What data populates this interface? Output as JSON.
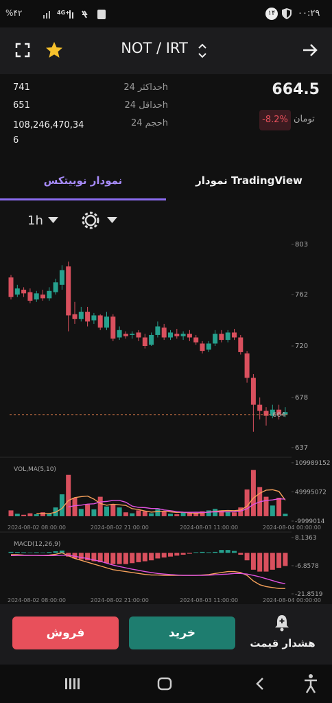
{
  "status_bar": {
    "battery": "%۴۲",
    "network": "4G+",
    "badge": "۱۴",
    "time": "۰۰:۲۹"
  },
  "header": {
    "pair": "NOT / IRT"
  },
  "stats": {
    "rows": [
      {
        "label": "حداکثر 24h",
        "value": "741"
      },
      {
        "label": "حداقل 24h",
        "value": "651"
      },
      {
        "label": "حجم 24h",
        "value": "108,246,470,346"
      }
    ],
    "price": "664.5",
    "currency": "تومان",
    "change": "-8.2%"
  },
  "tabs": {
    "active": "نمودار نوبیتکس",
    "other": "نمودار TradingView"
  },
  "interval": "1h",
  "chart_data": [
    {
      "type": "candlestick",
      "x": [
        "2024-08-02 08:00:00",
        "2024-08-02 09:00:00",
        "2024-08-02 10:00:00",
        "2024-08-02 11:00:00",
        "2024-08-02 12:00:00",
        "2024-08-02 13:00:00",
        "2024-08-02 14:00:00",
        "2024-08-02 15:00:00",
        "2024-08-02 16:00:00",
        "2024-08-02 17:00:00",
        "2024-08-02 18:00:00",
        "2024-08-02 19:00:00",
        "2024-08-02 20:00:00",
        "2024-08-02 21:00:00",
        "2024-08-02 22:00:00",
        "2024-08-02 23:00:00",
        "2024-08-03 00:00:00",
        "2024-08-03 01:00:00",
        "2024-08-03 02:00:00",
        "2024-08-03 03:00:00",
        "2024-08-03 04:00:00",
        "2024-08-03 05:00:00",
        "2024-08-03 06:00:00",
        "2024-08-03 07:00:00",
        "2024-08-03 08:00:00",
        "2024-08-03 09:00:00",
        "2024-08-03 10:00:00",
        "2024-08-03 11:00:00",
        "2024-08-03 12:00:00",
        "2024-08-03 13:00:00",
        "2024-08-03 14:00:00",
        "2024-08-03 15:00:00",
        "2024-08-03 16:00:00",
        "2024-08-03 17:00:00",
        "2024-08-03 18:00:00",
        "2024-08-03 19:00:00",
        "2024-08-03 20:00:00",
        "2024-08-03 21:00:00",
        "2024-08-03 22:00:00",
        "2024-08-03 23:00:00",
        "2024-08-04 00:00:00",
        "2024-08-04 01:00:00",
        "2024-08-04 02:00:00",
        "2024-08-04 03:00:00"
      ],
      "open": [
        776,
        762,
        766,
        764,
        758,
        762,
        759,
        764,
        770,
        785,
        746,
        742,
        748,
        741,
        745,
        735,
        744,
        727,
        730,
        729,
        731,
        727,
        721,
        729,
        735,
        727,
        730,
        728,
        730,
        727,
        722,
        717,
        722,
        730,
        725,
        731,
        727,
        714,
        694,
        672,
        667,
        663,
        668,
        664
      ],
      "high": [
        778,
        770,
        768,
        767,
        765,
        766,
        768,
        775,
        786,
        789,
        756,
        752,
        752,
        747,
        746,
        748,
        746,
        736,
        732,
        732,
        733,
        730,
        731,
        740,
        738,
        733,
        734,
        732,
        733,
        729,
        724,
        724,
        733,
        733,
        733,
        734,
        729,
        716,
        697,
        678,
        670,
        672,
        672,
        670
      ],
      "low": [
        758,
        760,
        760,
        755,
        756,
        757,
        757,
        762,
        766,
        732,
        738,
        740,
        736,
        738,
        733,
        733,
        724,
        725,
        726,
        726,
        724,
        718,
        720,
        727,
        725,
        725,
        726,
        725,
        724,
        721,
        714,
        715,
        720,
        723,
        723,
        725,
        713,
        690,
        650,
        660,
        655,
        661,
        660,
        662
      ],
      "close": [
        760,
        767,
        763,
        757,
        763,
        759,
        765,
        772,
        782,
        745,
        742,
        748,
        740,
        745,
        735,
        744,
        726,
        733,
        728,
        730,
        727,
        720,
        729,
        736,
        727,
        731,
        728,
        730,
        727,
        723,
        716,
        722,
        730,
        725,
        731,
        727,
        715,
        694,
        672,
        667,
        663,
        668,
        664,
        666
      ],
      "up_color": "#26a18e",
      "down_color": "#d9505e",
      "ylim": [
        637,
        803
      ],
      "yticks": [
        803,
        762,
        720,
        678,
        637
      ],
      "last_price": 664,
      "last_price_color": "#d8784a"
    },
    {
      "type": "volume",
      "title": "VOL,MA(5,10)",
      "values": [
        12000000,
        5000000,
        3000000,
        6000000,
        4000000,
        8000000,
        5000000,
        18000000,
        45000000,
        85000000,
        38000000,
        15000000,
        24000000,
        14000000,
        40000000,
        20000000,
        25000000,
        18000000,
        8000000,
        6000000,
        12000000,
        10000000,
        6000000,
        14000000,
        10000000,
        5000000,
        4000000,
        8000000,
        6000000,
        7000000,
        10000000,
        12000000,
        15000000,
        12000000,
        10000000,
        8000000,
        18000000,
        55000000,
        95000000,
        60000000,
        40000000,
        22000000,
        38000000,
        5000000
      ],
      "series": [
        {
          "color": "#f5a05a",
          "values": [
            null,
            null,
            null,
            null,
            6000000,
            5200000,
            5200000,
            8200000,
            16000000,
            32200000,
            38200000,
            40200000,
            41400000,
            35200000,
            26200000,
            22600000,
            24600000,
            23400000,
            22200000,
            15400000,
            13800000,
            10800000,
            8400000,
            9600000,
            10400000,
            9000000,
            7800000,
            8200000,
            6600000,
            6000000,
            7000000,
            8600000,
            10000000,
            11200000,
            11800000,
            11400000,
            12600000,
            20600000,
            37200000,
            47200000,
            53600000,
            54400000,
            51000000,
            33000000
          ]
        },
        {
          "color": "#e052e0",
          "values": [
            null,
            null,
            null,
            null,
            null,
            null,
            null,
            null,
            null,
            19100000,
            21700000,
            22700000,
            24800000,
            25600000,
            29200000,
            30400000,
            32400000,
            32400000,
            28700000,
            20800000,
            18200000,
            17700000,
            15900000,
            15900000,
            12900000,
            11400000,
            9300000,
            8300000,
            8100000,
            8200000,
            8000000,
            8200000,
            9100000,
            8900000,
            8900000,
            9200000,
            10600000,
            15300000,
            24200000,
            29500000,
            32500000,
            33500000,
            35800000,
            35100000
          ]
        }
      ],
      "ylim": [
        -9999014,
        109989152
      ],
      "yticks": [
        109989152,
        49995072,
        -9999014
      ],
      "xticks": [
        "2024-08-02 08:00:00",
        "2024-08-02 21:00:00",
        "2024-08-03 11:00:00",
        "2024-08-04 00:00:00"
      ]
    },
    {
      "type": "macd",
      "title": "MACD(12,26,9)",
      "values": [
        0.5,
        0.4,
        0.3,
        0.2,
        0.3,
        0.2,
        0.4,
        0.8,
        1.2,
        -2,
        -3,
        -3.5,
        -4,
        -4.5,
        -5,
        -5.5,
        -6,
        -6,
        -6,
        -5.5,
        -5,
        -4.5,
        -4,
        -3,
        -2.5,
        -2,
        -1.5,
        -1,
        -0.5,
        0.3,
        0.5,
        0.3,
        0.5,
        1.5,
        1.5,
        1,
        -1,
        -4,
        -9,
        -10,
        -10,
        -9,
        -8,
        -7
      ],
      "series": [
        {
          "color": "#f5a05a",
          "values": [
            -1,
            -1,
            -1.2,
            -1.3,
            -1.3,
            -1.4,
            -1.2,
            -0.8,
            0,
            -1.5,
            -3,
            -4,
            -5,
            -6,
            -7,
            -8,
            -9,
            -9.5,
            -10,
            -10.5,
            -11,
            -11.5,
            -11.8,
            -11.8,
            -12,
            -12,
            -12,
            -12,
            -12,
            -12,
            -11.8,
            -11.6,
            -11,
            -10.5,
            -10,
            -10,
            -10.5,
            -12,
            -15,
            -17,
            -18,
            -18.5,
            -19,
            -19
          ]
        },
        {
          "color": "#e052e0",
          "values": [
            -1.5,
            -1.4,
            -1.4,
            -1.4,
            -1.4,
            -1.5,
            -1.5,
            -1.5,
            -1.3,
            -1.3,
            -1.8,
            -2.5,
            -3,
            -3.8,
            -4.5,
            -5.5,
            -6.5,
            -7.3,
            -8,
            -8.7,
            -9.3,
            -10,
            -10.5,
            -11,
            -11.3,
            -11.6,
            -11.8,
            -12,
            -12,
            -12,
            -12,
            -11.9,
            -11.7,
            -11.5,
            -11.3,
            -11,
            -11,
            -11.3,
            -12,
            -12.8,
            -13.8,
            -14.8,
            -15.8,
            -16.5
          ]
        }
      ],
      "ylim": [
        -21.8519,
        8.1363
      ],
      "yticks": [
        8.1363,
        -6.8578,
        -21.8519
      ],
      "xticks": [
        "2024-08-02 08:00:00",
        "2024-08-02 21:00:00",
        "2024-08-03 11:00:00",
        "2024-08-04 00:00:00"
      ]
    }
  ],
  "actions": {
    "sell": "فروش",
    "buy": "خرید",
    "alert": "هشدار قیمت"
  }
}
